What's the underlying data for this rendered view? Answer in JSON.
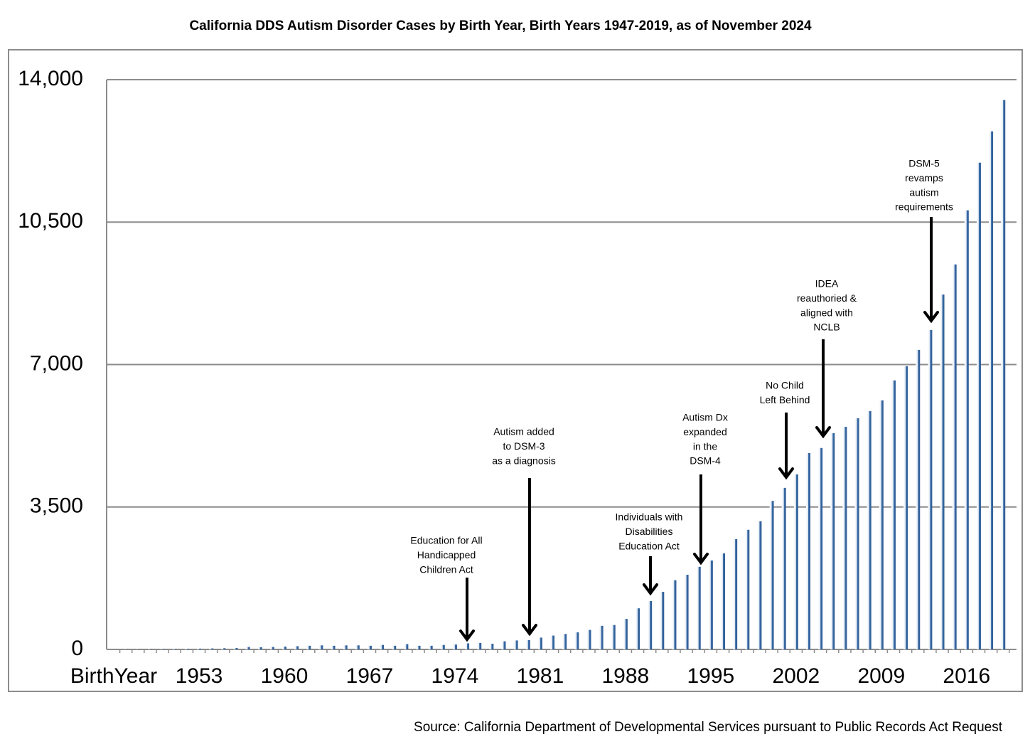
{
  "chart_data": {
    "type": "bar",
    "title": "California DDS Autism Disorder Cases by Birth Year, Birth Years 1947-2019, as of November 2024",
    "source": "Source: California Department of Developmental Services pursuant to Public Records Act Request",
    "categories": [
      "BirthYear",
      null,
      null,
      null,
      null,
      null,
      null,
      "1953",
      null,
      null,
      null,
      null,
      null,
      null,
      "1960",
      null,
      null,
      null,
      null,
      null,
      null,
      "1967",
      null,
      null,
      null,
      null,
      null,
      null,
      "1974",
      null,
      null,
      null,
      null,
      null,
      null,
      "1981",
      null,
      null,
      null,
      null,
      null,
      null,
      "1988",
      null,
      null,
      null,
      null,
      null,
      null,
      "1995",
      null,
      null,
      null,
      null,
      null,
      null,
      "2002",
      null,
      null,
      null,
      null,
      null,
      null,
      "2009",
      null,
      null,
      null,
      null,
      null,
      null,
      "2016",
      null,
      null,
      null
    ],
    "values": [
      null,
      5,
      5,
      8,
      10,
      12,
      15,
      20,
      25,
      30,
      35,
      60,
      55,
      60,
      70,
      80,
      90,
      100,
      90,
      100,
      100,
      90,
      110,
      90,
      130,
      90,
      90,
      110,
      120,
      150,
      160,
      140,
      200,
      220,
      230,
      290,
      340,
      380,
      420,
      480,
      580,
      600,
      750,
      1010,
      1190,
      1415,
      1700,
      1835,
      2030,
      2185,
      2360,
      2710,
      2940,
      3150,
      3650,
      3970,
      4300,
      4825,
      4950,
      5315,
      5470,
      5680,
      5855,
      6120,
      6610,
      6960,
      7360,
      7850,
      8720,
      9460,
      10790,
      11960,
      12730,
      13500
    ],
    "color": "#3d6ea8",
    "ylim": [
      0,
      14000
    ],
    "yticks": [
      0,
      {
        "value": 3500,
        "label": "3,500"
      },
      {
        "value": 7000,
        "label": "7,000"
      },
      {
        "value": 10500,
        "label": "10,500"
      },
      {
        "value": 14000,
        "label": "14,000"
      }
    ],
    "grid": true,
    "annotations": [
      [
        "Education for All",
        "Handicapped",
        "Children Act"
      ],
      [
        "Autism added",
        "to DSM-3",
        "as a diagnosis"
      ],
      [
        "Individuals with",
        "Disabilities",
        "Education Act"
      ],
      [
        "Autism Dx",
        "expanded",
        "in the",
        "DSM-4"
      ],
      [
        "No Child",
        "Left Behind"
      ],
      [
        "IDEA",
        "reauthoried &",
        "aligned with",
        "NCLB"
      ],
      [
        "DSM-5",
        "revamps",
        "autism",
        "requirements"
      ]
    ]
  }
}
